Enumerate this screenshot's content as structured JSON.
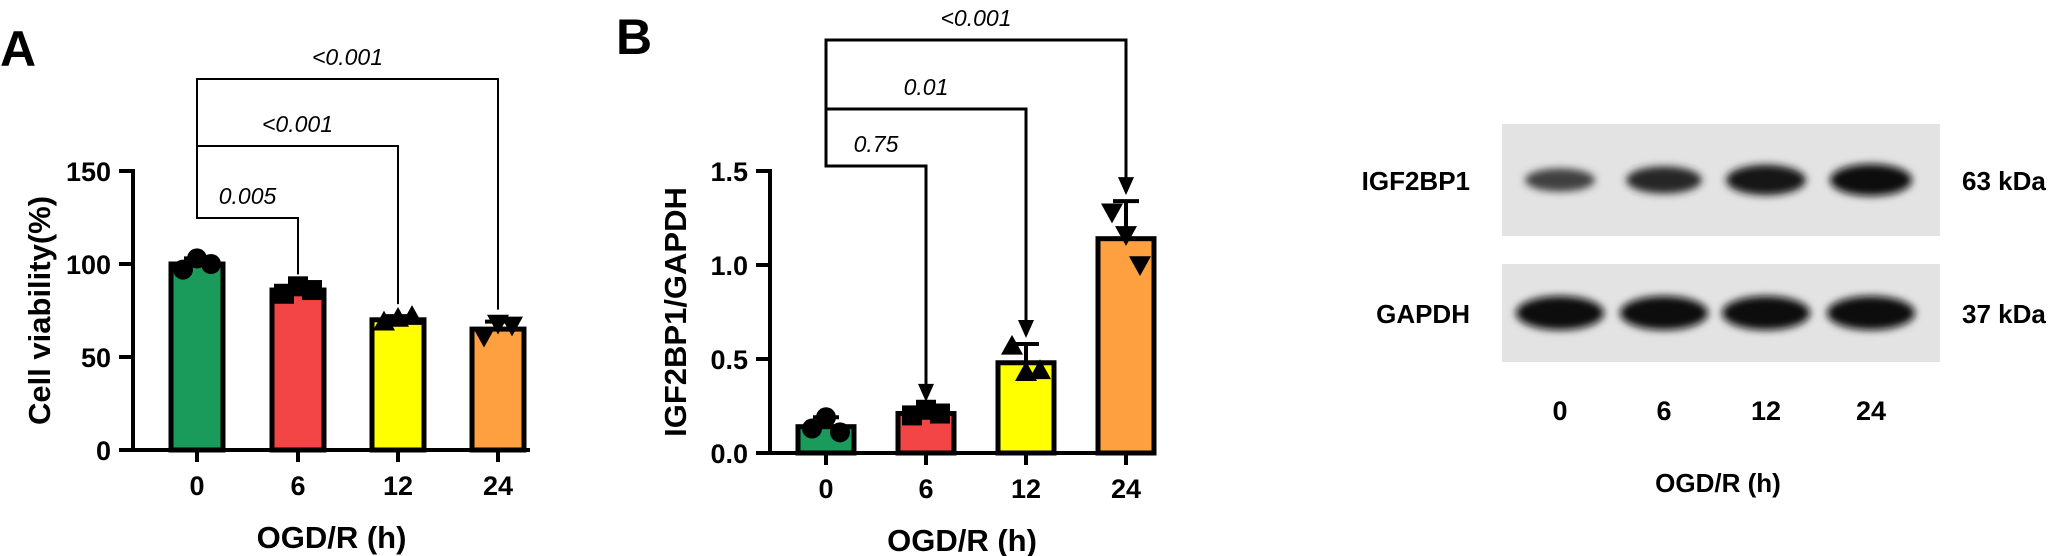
{
  "figure": {
    "panel_a_label": "A",
    "panel_b_label": "B"
  },
  "chart_data": [
    {
      "type": "bar",
      "panel": "A",
      "categories": [
        "0",
        "6",
        "12",
        "24"
      ],
      "values": [
        100,
        86,
        70,
        65
      ],
      "errors": [
        3,
        2,
        2,
        4
      ],
      "points": [
        [
          97,
          103,
          100
        ],
        [
          84,
          88,
          86
        ],
        [
          69,
          71,
          72
        ],
        [
          61,
          68,
          67
        ]
      ],
      "point_markers": [
        "circle",
        "square",
        "triangle-up",
        "triangle-down"
      ],
      "colors": [
        "#1a9a5b",
        "#f34545",
        "#ffff00",
        "#ffa040"
      ],
      "xlabel": "OGD/R (h)",
      "ylabel": "Cell viability(%)",
      "ylim": [
        0,
        150
      ],
      "yticks": [
        0,
        50,
        100,
        150
      ],
      "comparisons": [
        {
          "from": "0",
          "to": "6",
          "label": "0.005"
        },
        {
          "from": "0",
          "to": "12",
          "label": "<0.001"
        },
        {
          "from": "0",
          "to": "24",
          "label": "<0.001"
        }
      ]
    },
    {
      "type": "bar",
      "panel": "B",
      "categories": [
        "0",
        "6",
        "12",
        "24"
      ],
      "values": [
        0.14,
        0.21,
        0.48,
        1.14
      ],
      "errors": [
        0.05,
        0.03,
        0.1,
        0.2
      ],
      "points": [
        [
          0.13,
          0.19,
          0.11
        ],
        [
          0.2,
          0.23,
          0.21
        ],
        [
          0.57,
          0.43,
          0.44
        ],
        [
          1.28,
          1.16,
          1.0
        ]
      ],
      "point_markers": [
        "circle",
        "square",
        "triangle-up",
        "triangle-down"
      ],
      "colors": [
        "#1a9a5b",
        "#f34545",
        "#ffff00",
        "#ffa040"
      ],
      "xlabel": "OGD/R (h)",
      "ylabel": "IGF2BP1/GAPDH",
      "ylim": [
        0,
        1.5
      ],
      "yticks": [
        "0.0",
        "0.5",
        "1.0",
        "1.5"
      ],
      "comparisons": [
        {
          "from": "0",
          "to": "6",
          "label": "0.75",
          "arrow": true
        },
        {
          "from": "0",
          "to": "12",
          "label": "0.01",
          "arrow": true
        },
        {
          "from": "0",
          "to": "24",
          "label": "<0.001",
          "arrow": true
        }
      ]
    }
  ],
  "western_blot": {
    "rows": [
      {
        "protein": "IGF2BP1",
        "size": "63 kDa",
        "intensities": [
          0.45,
          0.7,
          0.9,
          1.0
        ]
      },
      {
        "protein": "GAPDH",
        "size": "37 kDa",
        "intensities": [
          1.0,
          1.0,
          1.0,
          1.0
        ]
      }
    ],
    "lanes": [
      "0",
      "6",
      "12",
      "24"
    ],
    "xlabel": "OGD/R (h)"
  }
}
